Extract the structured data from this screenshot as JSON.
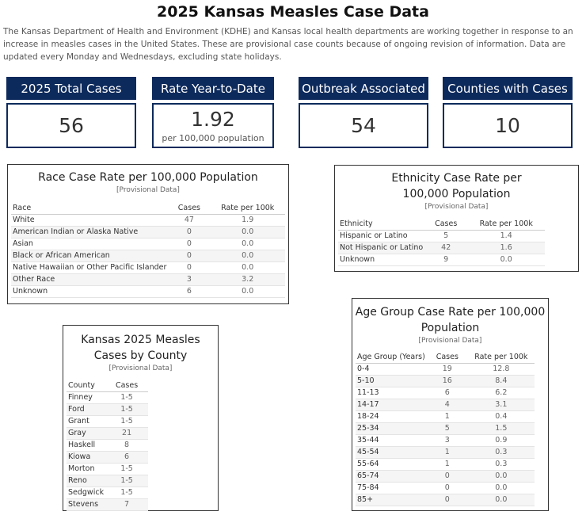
{
  "title": "2025 Kansas Measles Case Data",
  "intro": "The Kansas Department of Health and Environment (KDHE) and Kansas local health departments are working together in response to an increase in measles cases in the United States. These are provisional case counts because of ongoing revision of information. Data are updated every Monday and Wednesdays, excluding state holidays.",
  "kpis": [
    {
      "label": "2025 Total Cases",
      "value": "56",
      "sub": ""
    },
    {
      "label": "Rate Year-to-Date",
      "value": "1.92",
      "sub": "per 100,000 population"
    },
    {
      "label": "Outbreak Associated",
      "value": "54",
      "sub": ""
    },
    {
      "label": "Counties with Cases",
      "value": "10",
      "sub": ""
    }
  ],
  "race": {
    "title": "Race Case Rate per 100,000 Population",
    "subtitle": "[Provisional Data]",
    "headers": [
      "Race",
      "Cases",
      "Rate per 100k"
    ],
    "rows": [
      [
        "White",
        "47",
        "1.9"
      ],
      [
        "American Indian or Alaska Native",
        "0",
        "0.0"
      ],
      [
        "Asian",
        "0",
        "0.0"
      ],
      [
        "Black or African American",
        "0",
        "0.0"
      ],
      [
        "Native Hawaiian or Other Pacific Islander",
        "0",
        "0.0"
      ],
      [
        "Other Race",
        "3",
        "3.2"
      ],
      [
        "Unknown",
        "6",
        "0.0"
      ]
    ]
  },
  "ethnicity": {
    "title_line1": "Ethnicity Case Rate per",
    "title_line2": "100,000 Population",
    "subtitle": "[Provisional Data]",
    "headers": [
      "Ethnicity",
      "Cases",
      "Rate per 100k"
    ],
    "rows": [
      [
        "Hispanic or Latino",
        "5",
        "1.4"
      ],
      [
        "Not Hispanic or Latino",
        "42",
        "1.6"
      ],
      [
        "Unknown",
        "9",
        "0.0"
      ]
    ]
  },
  "county": {
    "title_line1": "Kansas 2025 Measles",
    "title_line2": "Cases by County",
    "subtitle": "[Provisional Data]",
    "headers": [
      "County",
      "Cases"
    ],
    "rows": [
      [
        "Finney",
        "1-5"
      ],
      [
        "Ford",
        "1-5"
      ],
      [
        "Grant",
        "1-5"
      ],
      [
        "Gray",
        "21"
      ],
      [
        "Haskell",
        "8"
      ],
      [
        "Kiowa",
        "6"
      ],
      [
        "Morton",
        "1-5"
      ],
      [
        "Reno",
        "1-5"
      ],
      [
        "Sedgwick",
        "1-5"
      ],
      [
        "Stevens",
        "7"
      ]
    ]
  },
  "age": {
    "title_line1": "Age Group Case Rate per 100,000",
    "title_line2": "Population",
    "subtitle": "[Provisional Data]",
    "headers": [
      "Age Group (Years)",
      "Cases",
      "Rate per 100k"
    ],
    "rows": [
      [
        "0-4",
        "19",
        "12.8"
      ],
      [
        "5-10",
        "16",
        "8.4"
      ],
      [
        "11-13",
        "6",
        "6.2"
      ],
      [
        "14-17",
        "4",
        "3.1"
      ],
      [
        "18-24",
        "1",
        "0.4"
      ],
      [
        "25-34",
        "5",
        "1.5"
      ],
      [
        "35-44",
        "3",
        "0.9"
      ],
      [
        "45-54",
        "1",
        "0.3"
      ],
      [
        "55-64",
        "1",
        "0.3"
      ],
      [
        "65-74",
        "0",
        "0.0"
      ],
      [
        "75-84",
        "0",
        "0.0"
      ],
      [
        "85+",
        "0",
        "0.0"
      ]
    ]
  }
}
